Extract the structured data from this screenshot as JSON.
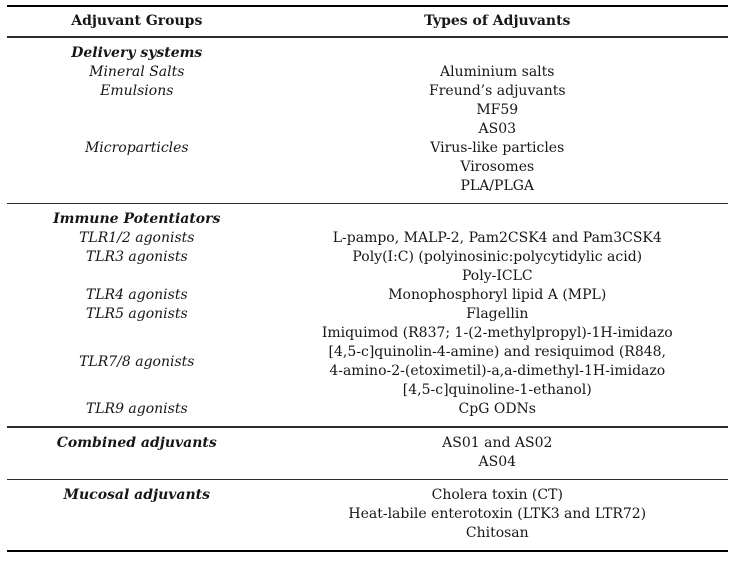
{
  "table": {
    "header": {
      "col1": "Adjuvant Groups",
      "col2": "Types of Adjuvants"
    },
    "sections": [
      {
        "name": "delivery-systems",
        "rows": [
          {
            "group": "Delivery systems",
            "group_style": "section",
            "type": ""
          },
          {
            "group": "Mineral Salts",
            "group_style": "sub",
            "type": "Aluminium salts"
          },
          {
            "group": "Emulsions",
            "group_style": "sub",
            "type": "Freund’s adjuvants"
          },
          {
            "group": "",
            "type": "MF59"
          },
          {
            "group": "",
            "type": "AS03"
          },
          {
            "group": "Microparticles",
            "group_style": "sub",
            "type": "Virus-like particles"
          },
          {
            "group": "",
            "type": "Virosomes"
          },
          {
            "group": "",
            "type": "PLA/PLGA"
          }
        ]
      },
      {
        "name": "immune-potentiators",
        "rows": [
          {
            "group": "Immune Potentiators",
            "group_style": "section",
            "type": ""
          },
          {
            "group": "TLR1/2 agonists",
            "group_style": "sub",
            "type": "L-pampo, MALP-2, Pam2CSK4 and Pam3CSK4"
          },
          {
            "group": "TLR3 agonists",
            "group_style": "sub",
            "type": "Poly(I:C) (polyinosinic:polycytidylic acid)"
          },
          {
            "group": "",
            "type": "Poly-ICLC"
          },
          {
            "group": "TLR4 agonists",
            "group_style": "sub",
            "type": "Monophosphoryl lipid A (MPL)"
          },
          {
            "group": "TLR5 agonists",
            "group_style": "sub",
            "type": "Flagellin"
          },
          {
            "group": "TLR7/8 agonists",
            "group_style": "sub",
            "type_lines": [
              "Imiquimod (R837; 1-(2-methylpropyl)-1H-imidazo",
              "[4,5-c]quinolin-4-amine) and resiquimod (R848,",
              "4-amino-2-(etoximetil)-a,a-dimethyl-1H-imidazo",
              "[4,5-c]quinoline-1-ethanol)"
            ]
          },
          {
            "group": "TLR9 agonists",
            "group_style": "sub",
            "type": "CpG ODNs"
          }
        ]
      },
      {
        "name": "combined-adjuvants",
        "rows": [
          {
            "group": "Combined adjuvants",
            "group_style": "section",
            "type": "AS01 and AS02"
          },
          {
            "group": "",
            "type": "AS04"
          }
        ]
      },
      {
        "name": "mucosal-adjuvants",
        "rows": [
          {
            "group": "Mucosal adjuvants",
            "group_style": "section",
            "type": "Cholera toxin (CT)"
          },
          {
            "group": "",
            "type": "Heat-labile enterotoxin (LTK3 and LTR72)"
          },
          {
            "group": "",
            "type": "Chitosan"
          }
        ]
      }
    ]
  },
  "colors": {
    "background": "#ffffff",
    "text": "#161616",
    "rule_outer": "#000000",
    "rule_inner": "#2b2b2b"
  }
}
